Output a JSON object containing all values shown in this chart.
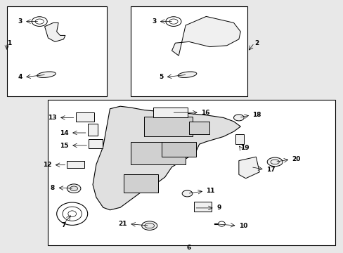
{
  "bg_color": "#e8e8e8",
  "panel_bg": "#ffffff",
  "line_color": "#000000",
  "fig_width": 4.89,
  "fig_height": 3.6,
  "dpi": 100
}
